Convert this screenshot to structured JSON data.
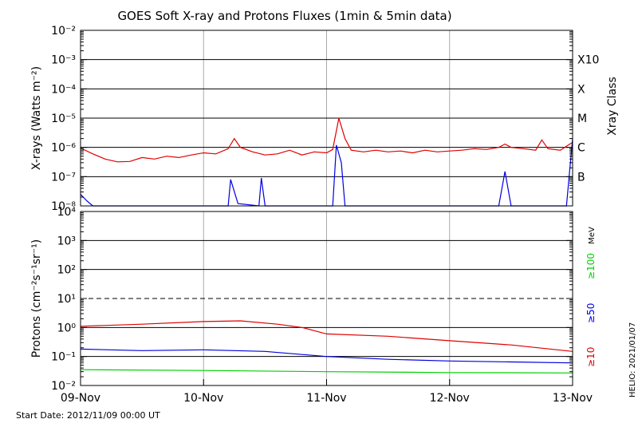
{
  "title": "GOES Soft X-ray and Protons Fluxes   (1min & 5min data)",
  "footer": {
    "start_date": "Start Date: 2012/11/09 00:00 UT",
    "helio": "HELIO: 2021/01/07"
  },
  "chart_data": [
    {
      "type": "line",
      "panel": "xray",
      "ylabel": "X-rays (Watts m⁻²)",
      "right_axis_label": "Xray Class",
      "y_scale": "log",
      "ylim": [
        1e-08,
        0.01
      ],
      "y_ticks": [
        {
          "value": 1e-08,
          "label": "10⁻⁸"
        },
        {
          "value": 1e-07,
          "label": "10⁻⁷"
        },
        {
          "value": 1e-06,
          "label": "10⁻⁶"
        },
        {
          "value": 1e-05,
          "label": "10⁻⁵"
        },
        {
          "value": 0.0001,
          "label": "10⁻⁴"
        },
        {
          "value": 0.001,
          "label": "10⁻³"
        },
        {
          "value": 0.01,
          "label": "10⁻²"
        }
      ],
      "classes": [
        {
          "label": "X10",
          "value": 0.001
        },
        {
          "label": "X",
          "value": 0.0001
        },
        {
          "label": "M",
          "value": 1e-05
        },
        {
          "label": "C",
          "value": 1e-06
        },
        {
          "label": "B",
          "value": 1e-07
        }
      ],
      "gridlines_solid": [
        1e-07,
        1e-06,
        1e-05,
        0.0001,
        0.001
      ],
      "x_days": [
        "09-Nov",
        "10-Nov",
        "11-Nov",
        "12-Nov",
        "13-Nov"
      ],
      "series": [
        {
          "color": "#e00000",
          "points": [
            [
              0,
              9.5e-07
            ],
            [
              0.1,
              6e-07
            ],
            [
              0.2,
              4e-07
            ],
            [
              0.3,
              3.2e-07
            ],
            [
              0.4,
              3.3e-07
            ],
            [
              0.5,
              4.5e-07
            ],
            [
              0.6,
              4e-07
            ],
            [
              0.7,
              5e-07
            ],
            [
              0.8,
              4.5e-07
            ],
            [
              0.9,
              5.5e-07
            ],
            [
              1.0,
              6.5e-07
            ],
            [
              1.1,
              6e-07
            ],
            [
              1.2,
              9e-07
            ],
            [
              1.25,
              2e-06
            ],
            [
              1.3,
              1e-06
            ],
            [
              1.4,
              7e-07
            ],
            [
              1.5,
              5.5e-07
            ],
            [
              1.6,
              6e-07
            ],
            [
              1.7,
              8e-07
            ],
            [
              1.8,
              5.5e-07
            ],
            [
              1.9,
              7e-07
            ],
            [
              2.0,
              6.5e-07
            ],
            [
              2.05,
              8.5e-07
            ],
            [
              2.1,
              1e-05
            ],
            [
              2.15,
              2e-06
            ],
            [
              2.2,
              8e-07
            ],
            [
              2.3,
              7e-07
            ],
            [
              2.4,
              8e-07
            ],
            [
              2.5,
              7e-07
            ],
            [
              2.6,
              7.5e-07
            ],
            [
              2.7,
              6.5e-07
            ],
            [
              2.8,
              8e-07
            ],
            [
              2.9,
              7e-07
            ],
            [
              3.0,
              7.5e-07
            ],
            [
              3.1,
              8e-07
            ],
            [
              3.2,
              9e-07
            ],
            [
              3.3,
              8.5e-07
            ],
            [
              3.4,
              1e-06
            ],
            [
              3.45,
              1.3e-06
            ],
            [
              3.5,
              1e-06
            ],
            [
              3.6,
              9e-07
            ],
            [
              3.7,
              8e-07
            ],
            [
              3.75,
              1.8e-06
            ],
            [
              3.8,
              9e-07
            ],
            [
              3.9,
              8e-07
            ],
            [
              4.0,
              1.5e-06
            ]
          ]
        },
        {
          "color": "#0000e0",
          "points": [
            [
              0,
              2.5e-08
            ],
            [
              0.05,
              1.5e-08
            ],
            [
              0.1,
              1e-08
            ],
            [
              0.2,
              1e-08
            ],
            [
              1.2,
              1e-08
            ],
            [
              1.22,
              8e-08
            ],
            [
              1.28,
              1.2e-08
            ],
            [
              1.45,
              1e-08
            ],
            [
              1.47,
              9e-08
            ],
            [
              1.5,
              1e-08
            ],
            [
              2.05,
              1e-08
            ],
            [
              2.08,
              1.2e-06
            ],
            [
              2.12,
              3e-07
            ],
            [
              2.15,
              1e-08
            ],
            [
              3.4,
              1e-08
            ],
            [
              3.45,
              1.5e-07
            ],
            [
              3.5,
              1e-08
            ],
            [
              3.95,
              1e-08
            ],
            [
              4.0,
              2e-06
            ]
          ]
        }
      ]
    },
    {
      "type": "line",
      "panel": "protons",
      "ylabel": "Protons (cm⁻²s⁻¹sr⁻¹)",
      "right_axis_label": "MeV",
      "y_scale": "log",
      "ylim": [
        0.01,
        10000
      ],
      "y_ticks": [
        {
          "value": 0.01,
          "label": "10⁻²"
        },
        {
          "value": 0.1,
          "label": "10⁻¹"
        },
        {
          "value": 1,
          "label": "10⁰"
        },
        {
          "value": 10,
          "label": "10¹"
        },
        {
          "value": 100,
          "label": "10²"
        },
        {
          "value": 1000,
          "label": "10³"
        },
        {
          "value": 10000,
          "label": "10⁴"
        }
      ],
      "gridlines_solid": [
        0.1,
        1,
        100,
        1000
      ],
      "gridline_dashed": 10,
      "x_days": [
        "09-Nov",
        "10-Nov",
        "11-Nov",
        "12-Nov",
        "13-Nov"
      ],
      "series": [
        {
          "name": "≥10",
          "color": "#e00000",
          "points": [
            [
              0,
              1.1
            ],
            [
              0.5,
              1.3
            ],
            [
              1.0,
              1.6
            ],
            [
              1.3,
              1.7
            ],
            [
              1.6,
              1.3
            ],
            [
              1.8,
              1.0
            ],
            [
              2.0,
              0.6
            ],
            [
              2.5,
              0.5
            ],
            [
              3.0,
              0.35
            ],
            [
              3.5,
              0.25
            ],
            [
              4.0,
              0.15
            ]
          ]
        },
        {
          "name": "≥50",
          "color": "#0000e0",
          "points": [
            [
              0,
              0.18
            ],
            [
              0.5,
              0.16
            ],
            [
              1.0,
              0.17
            ],
            [
              1.5,
              0.15
            ],
            [
              2.0,
              0.1
            ],
            [
              2.5,
              0.08
            ],
            [
              3.0,
              0.07
            ],
            [
              3.5,
              0.065
            ],
            [
              4.0,
              0.06
            ]
          ]
        },
        {
          "name": "≥100",
          "color": "#00d000",
          "points": [
            [
              0,
              0.035
            ],
            [
              1.0,
              0.033
            ],
            [
              2.0,
              0.03
            ],
            [
              3.0,
              0.028
            ],
            [
              4.0,
              0.027
            ]
          ]
        }
      ]
    }
  ]
}
